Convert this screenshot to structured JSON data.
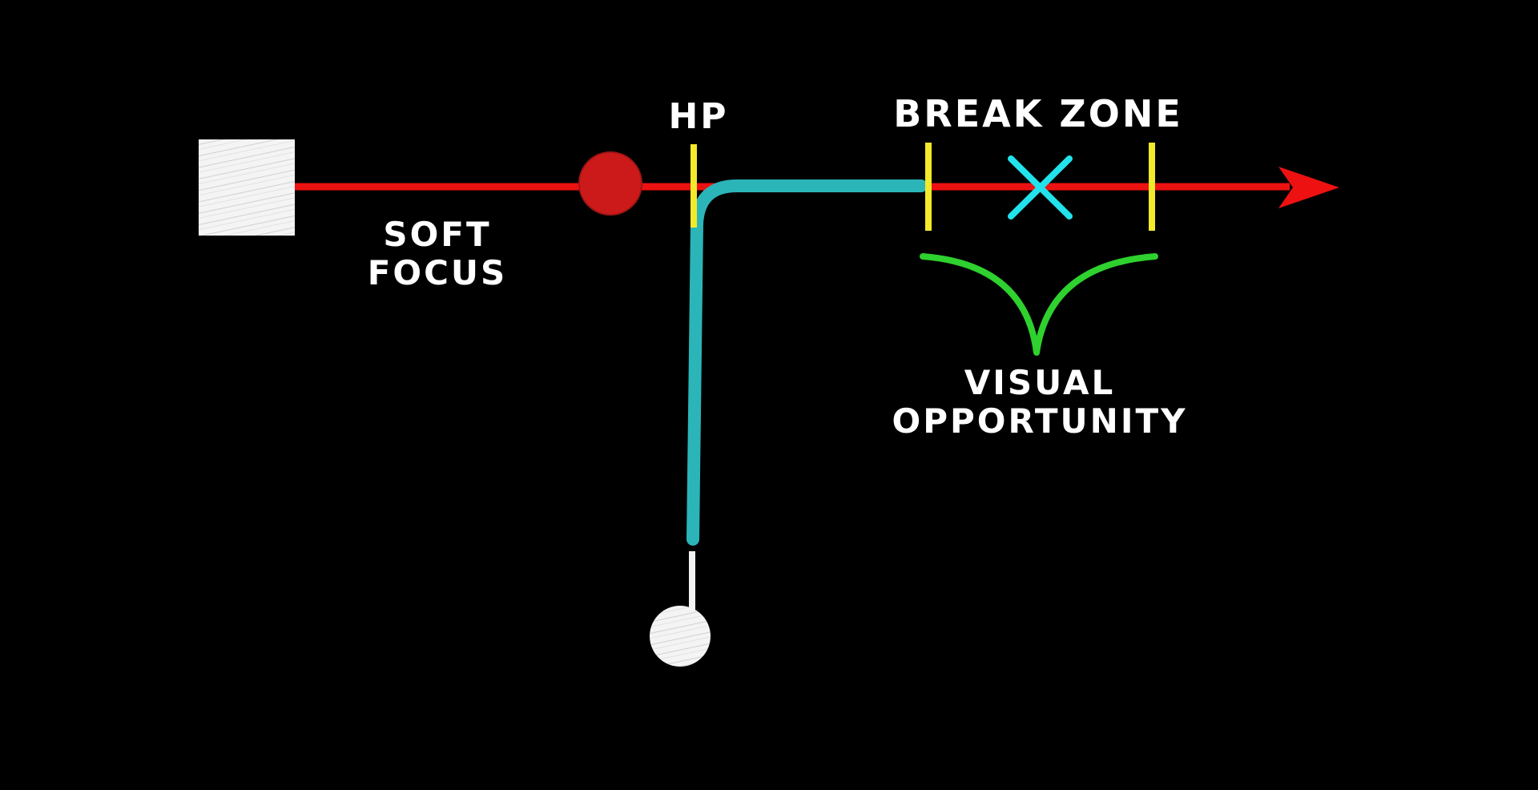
{
  "diagram": {
    "labels": {
      "soft_focus_line1": "SOFT",
      "soft_focus_line2": "FOCUS",
      "hp": "HP",
      "break_zone": "BREAK ZONE",
      "visual_opportunity_line1": "VISUAL",
      "visual_opportunity_line2": "OPPORTUNITY"
    },
    "colors": {
      "background": "#000000",
      "flight_line": "#ee1111",
      "tracking_path": "#2bb5b8",
      "markers": "#f2ea2a",
      "target_x": "#22e3ec",
      "bracket": "#2ed12e",
      "chalk": "#f2f2f2",
      "ball": "#cc1a1a"
    },
    "icons": {
      "trap_house": "square-icon",
      "target": "circle-icon",
      "shooter": "shooter-circle-icon",
      "break_point": "x-icon",
      "direction": "arrow-head-icon"
    }
  }
}
